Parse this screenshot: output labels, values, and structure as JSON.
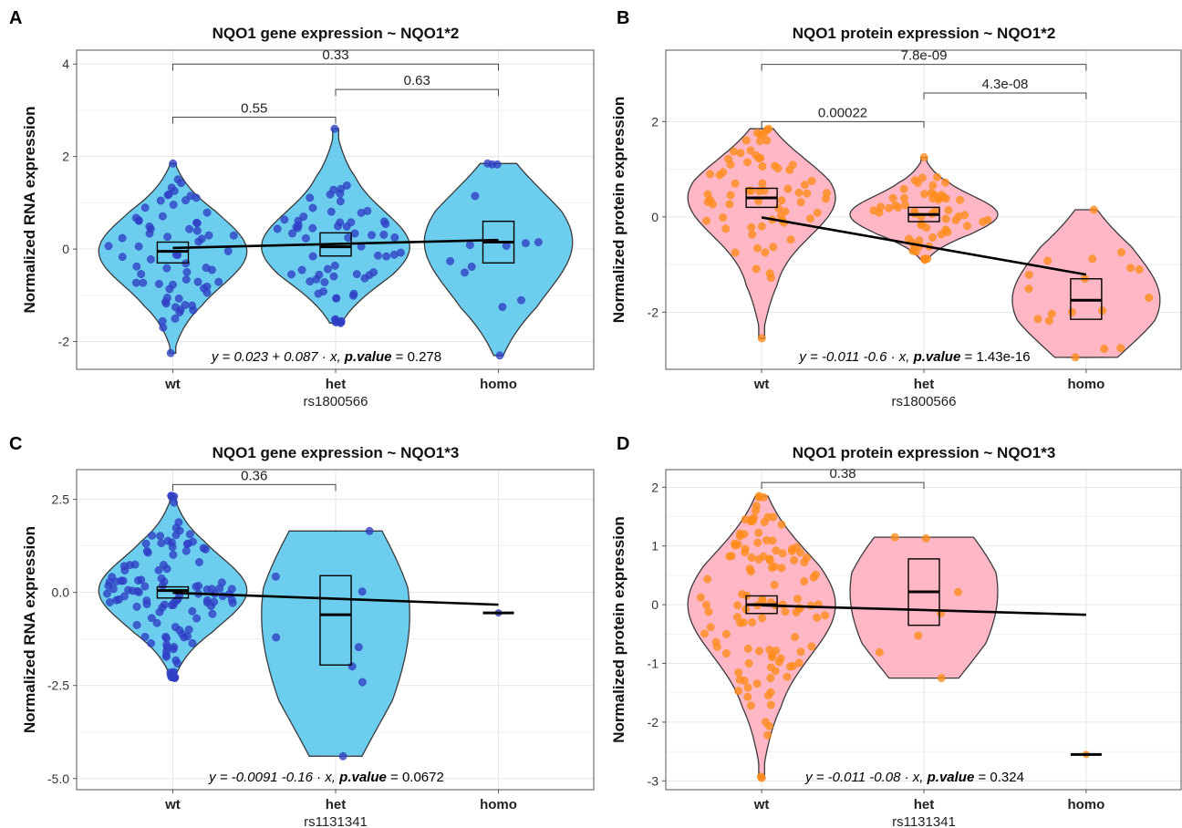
{
  "colors": {
    "rna_fill": "#6DCDEE",
    "rna_point": "#2F3FC4",
    "protein_fill": "#FFB7C5",
    "protein_point": "#FF8C1A",
    "outline": "#3a3a3a",
    "grid": "#e6e6e6"
  },
  "chart_data": [
    {
      "type": "violin",
      "panel_label": "A",
      "title": "NQO1 gene expression ~ NQO1*2",
      "xlabel": "rs1800566",
      "ylabel": "Normalized RNA expression",
      "categories": [
        "wt",
        "het",
        "homo"
      ],
      "ylim": [
        -2.6,
        4.3
      ],
      "yticks": [
        -2,
        0,
        2,
        4
      ],
      "ytick_labels": [
        "-2",
        "0",
        "2",
        "4"
      ],
      "fill": "rna",
      "groups": [
        {
          "name": "wt",
          "min": -2.25,
          "max": 1.85,
          "box_low": -0.3,
          "box_median": -0.05,
          "box_high": 0.15,
          "n_points": 70
        },
        {
          "name": "het",
          "min": -1.6,
          "max": 2.6,
          "box_low": -0.15,
          "box_median": 0.05,
          "box_high": 0.35,
          "n_points": 65
        },
        {
          "name": "homo",
          "min": -2.3,
          "max": 1.85,
          "box_low": -0.3,
          "box_median": 0.15,
          "box_high": 0.6,
          "n_points": 14
        }
      ],
      "regression": {
        "intercept": 0.023,
        "slope": 0.087
      },
      "annotation": {
        "prefix": "y = 0.023 + 0.087 · x, ",
        "label": "p.value",
        "value": " = 0.278"
      },
      "comparisons": [
        {
          "from": "wt",
          "to": "het",
          "label": "0.55",
          "y": 2.85
        },
        {
          "from": "het",
          "to": "homo",
          "label": "0.63",
          "y": 3.45
        },
        {
          "from": "wt",
          "to": "homo",
          "label": "0.33",
          "y": 4.0
        }
      ]
    },
    {
      "type": "violin",
      "panel_label": "B",
      "title": "NQO1 protein expression ~ NQO1*2",
      "xlabel": "rs1800566",
      "ylabel": "Normalized protein expression",
      "categories": [
        "wt",
        "het",
        "homo"
      ],
      "ylim": [
        -3.2,
        3.5
      ],
      "yticks": [
        -2,
        0,
        2
      ],
      "ytick_labels": [
        "-2",
        "0",
        "2"
      ],
      "fill": "protein",
      "groups": [
        {
          "name": "wt",
          "min": -2.55,
          "max": 1.85,
          "box_low": 0.2,
          "box_median": 0.4,
          "box_high": 0.6,
          "n_points": 70
        },
        {
          "name": "het",
          "min": -0.9,
          "max": 1.25,
          "box_low": -0.1,
          "box_median": 0.05,
          "box_high": 0.2,
          "n_points": 60
        },
        {
          "name": "homo",
          "min": -2.95,
          "max": 0.15,
          "box_low": -2.15,
          "box_median": -1.75,
          "box_high": -1.3,
          "n_points": 18
        }
      ],
      "regression": {
        "intercept": -0.011,
        "slope": -0.6
      },
      "annotation": {
        "prefix": "y = -0.011 -0.6 · x, ",
        "label": "p.value",
        "value": " = 1.43e-16"
      },
      "comparisons": [
        {
          "from": "wt",
          "to": "het",
          "label": "0.00022",
          "y": 2.0
        },
        {
          "from": "het",
          "to": "homo",
          "label": "4.3e-08",
          "y": 2.6
        },
        {
          "from": "wt",
          "to": "homo",
          "label": "7.8e-09",
          "y": 3.2
        }
      ]
    },
    {
      "type": "violin",
      "panel_label": "C",
      "title": "NQO1 gene expression ~ NQO1*3",
      "xlabel": "rs1131341",
      "ylabel": "Normalized RNA expression",
      "categories": [
        "wt",
        "het",
        "homo"
      ],
      "ylim": [
        -5.3,
        3.3
      ],
      "yticks": [
        -5.0,
        -2.5,
        0.0,
        2.5
      ],
      "ytick_labels": [
        "-5.0",
        "-2.5",
        "0.0",
        "2.5"
      ],
      "fill": "rna",
      "groups": [
        {
          "name": "wt",
          "min": -2.3,
          "max": 2.6,
          "box_low": -0.15,
          "box_median": 0.05,
          "box_high": 0.15,
          "n_points": 120
        },
        {
          "name": "het",
          "min": -4.4,
          "max": 1.65,
          "box_low": -1.95,
          "box_median": -0.6,
          "box_high": 0.45,
          "n_points": 8
        },
        {
          "name": "homo",
          "min": -0.55,
          "max": -0.55,
          "box_low": -0.55,
          "box_median": -0.55,
          "box_high": -0.55,
          "n_points": 1
        }
      ],
      "regression": {
        "intercept": -0.0091,
        "slope": -0.16
      },
      "annotation": {
        "prefix": "y = -0.0091 -0.16 · x, ",
        "label": "p.value",
        "value": " = 0.0672"
      },
      "comparisons": [
        {
          "from": "wt",
          "to": "het",
          "label": "0.36",
          "y": 2.9
        }
      ]
    },
    {
      "type": "violin",
      "panel_label": "D",
      "title": "NQO1 protein expression ~ NQO1*3",
      "xlabel": "rs1131341",
      "ylabel": "Normalized protein expression",
      "categories": [
        "wt",
        "het",
        "homo"
      ],
      "ylim": [
        -3.15,
        2.3
      ],
      "yticks": [
        -3,
        -2,
        -1,
        0,
        1,
        2
      ],
      "ytick_labels": [
        "-3",
        "-2",
        "-1",
        "0",
        "1",
        "2"
      ],
      "fill": "protein",
      "groups": [
        {
          "name": "wt",
          "min": -2.95,
          "max": 1.85,
          "box_low": -0.15,
          "box_median": 0.0,
          "box_high": 0.15,
          "n_points": 120
        },
        {
          "name": "het",
          "min": -1.25,
          "max": 1.15,
          "box_low": -0.35,
          "box_median": 0.22,
          "box_high": 0.78,
          "n_points": 7
        },
        {
          "name": "homo",
          "min": -2.55,
          "max": -2.55,
          "box_low": -2.55,
          "box_median": -2.55,
          "box_high": -2.55,
          "n_points": 1
        }
      ],
      "regression": {
        "intercept": -0.011,
        "slope": -0.08
      },
      "annotation": {
        "prefix": "y = -0.011 -0.08 · x, ",
        "label": "p.value",
        "value": " = 0.324"
      },
      "comparisons": [
        {
          "from": "wt",
          "to": "het",
          "label": "0.38",
          "y": 2.08
        }
      ]
    }
  ]
}
